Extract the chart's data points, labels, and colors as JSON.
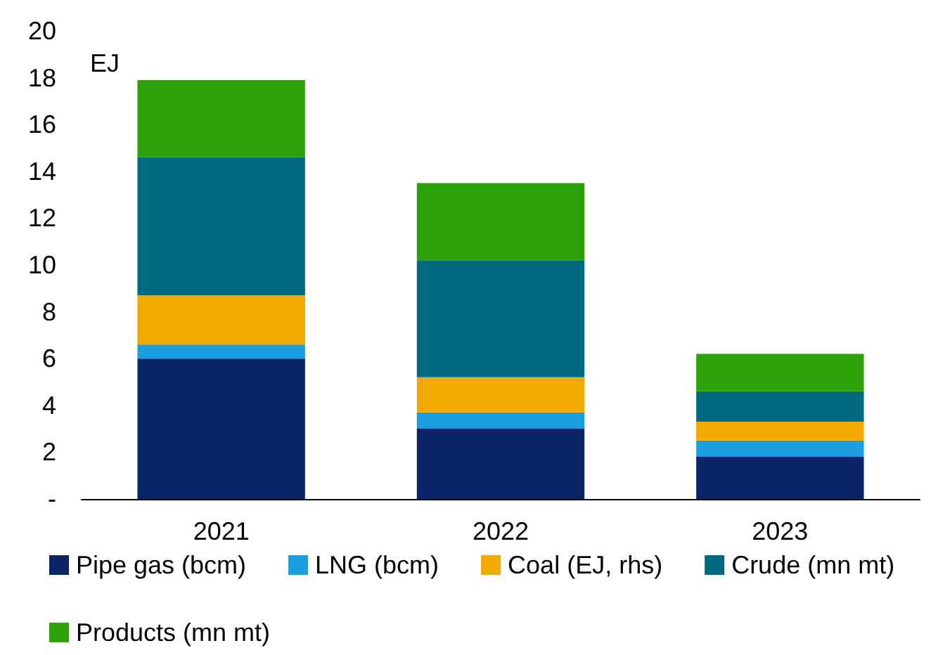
{
  "chart_data": {
    "type": "bar",
    "stacked": true,
    "ylabel": "EJ",
    "categories": [
      "2021",
      "2022",
      "2023"
    ],
    "series": [
      {
        "name": "Pipe gas (bcm)",
        "color": "#0b2468",
        "values": [
          6.0,
          3.0,
          1.8
        ]
      },
      {
        "name": "LNG (bcm)",
        "color": "#1a9ee0",
        "values": [
          0.6,
          0.7,
          0.7
        ]
      },
      {
        "name": "Coal (EJ, rhs)",
        "color": "#f2a900",
        "values": [
          2.1,
          1.5,
          0.8
        ]
      },
      {
        "name": "Crude (mn mt)",
        "color": "#006a80",
        "values": [
          5.9,
          5.0,
          1.3
        ]
      },
      {
        "name": "Products (mn mt)",
        "color": "#2ca10a",
        "values": [
          3.3,
          3.3,
          1.6
        ]
      }
    ],
    "ylim": [
      0,
      20
    ],
    "yticks": [
      {
        "value": 0,
        "label": "-"
      },
      2,
      4,
      6,
      8,
      10,
      12,
      14,
      16,
      18,
      20
    ],
    "grid": false,
    "legend": "bottom"
  }
}
